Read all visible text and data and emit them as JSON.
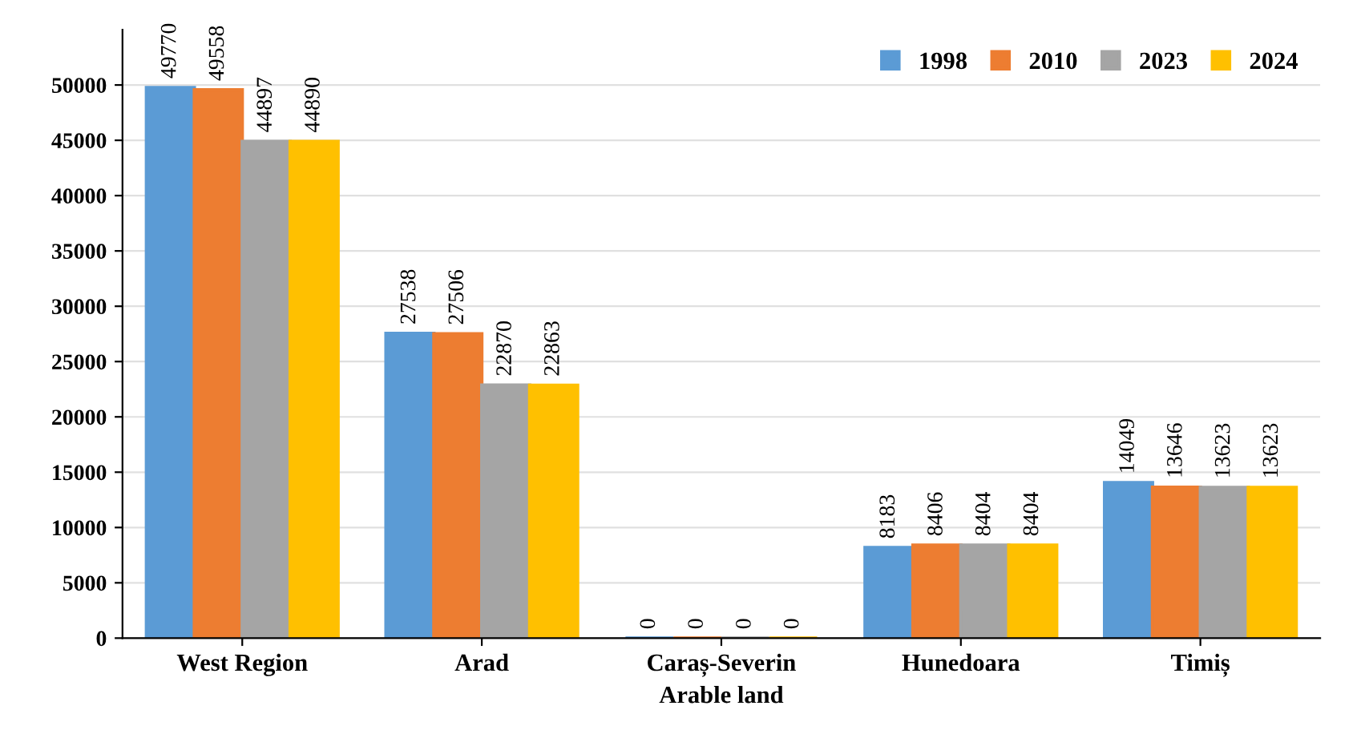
{
  "chart_data": {
    "type": "bar",
    "xlabel": "Arable land",
    "categories": [
      "West Region",
      "Arad",
      "Caraș-Severin",
      "Hunedoara",
      "Timiș"
    ],
    "series": [
      {
        "name": "1998",
        "color": "#5b9bd5",
        "values": [
          49770,
          27538,
          0,
          8183,
          14049
        ]
      },
      {
        "name": "2010",
        "color": "#ed7d31",
        "values": [
          49558,
          27506,
          0,
          8406,
          13646
        ]
      },
      {
        "name": "2023",
        "color": "#a5a5a5",
        "values": [
          44897,
          22870,
          0,
          8404,
          13623
        ]
      },
      {
        "name": "2024",
        "color": "#ffc000",
        "values": [
          44890,
          22863,
          0,
          8404,
          13623
        ]
      }
    ],
    "ylim": [
      0,
      55000
    ],
    "yticks": [
      0,
      5000,
      10000,
      15000,
      20000,
      25000,
      30000,
      35000,
      40000,
      45000,
      50000
    ],
    "grid": "y",
    "legend": "top right",
    "data_labels": true
  }
}
